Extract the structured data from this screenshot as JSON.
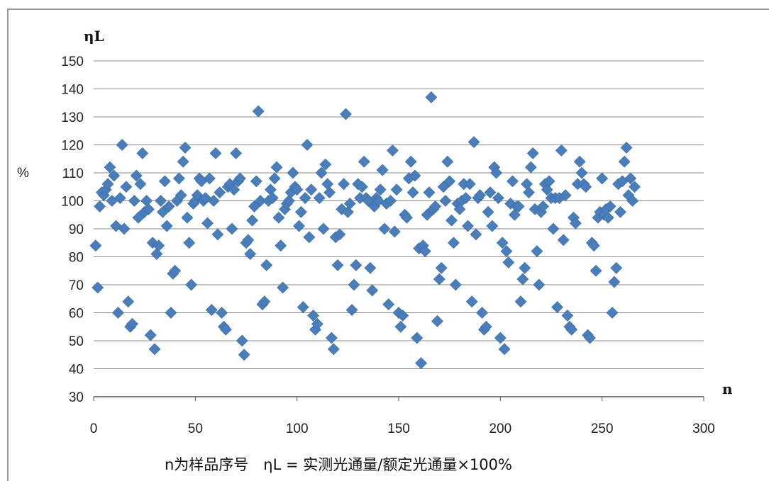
{
  "chart_data": {
    "type": "scatter",
    "title": "",
    "ylabel_symbol": "ηL",
    "ylabel_unit": "%",
    "xlabel": "n",
    "caption": "n为样品序号　ηL = 实测光通量/额定光通量×100%",
    "xlim": [
      0,
      300
    ],
    "ylim": [
      30,
      150
    ],
    "x_ticks": [
      0,
      50,
      100,
      150,
      200,
      250,
      300
    ],
    "y_ticks": [
      30,
      40,
      50,
      60,
      70,
      80,
      90,
      100,
      110,
      120,
      130,
      140,
      150
    ],
    "grid": "horizontal",
    "marker": "diamond",
    "marker_color": "#4a7ebb",
    "series": [
      {
        "values": [
          [
            1,
            84
          ],
          [
            2,
            69
          ],
          [
            3,
            98
          ],
          [
            4,
            103
          ],
          [
            5,
            102
          ],
          [
            6,
            104
          ],
          [
            7,
            106
          ],
          [
            8,
            112
          ],
          [
            9,
            100
          ],
          [
            10,
            109
          ],
          [
            11,
            91
          ],
          [
            12,
            60
          ],
          [
            13,
            101
          ],
          [
            14,
            120
          ],
          [
            15,
            90
          ],
          [
            16,
            105
          ],
          [
            17,
            64
          ],
          [
            18,
            55
          ],
          [
            19,
            56
          ],
          [
            20,
            100
          ],
          [
            21,
            109
          ],
          [
            22,
            94
          ],
          [
            23,
            106
          ],
          [
            24,
            117
          ],
          [
            25,
            96
          ],
          [
            26,
            100
          ],
          [
            27,
            97
          ],
          [
            28,
            52
          ],
          [
            29,
            85
          ],
          [
            30,
            47
          ],
          [
            31,
            81
          ],
          [
            32,
            84
          ],
          [
            33,
            100
          ],
          [
            34,
            96
          ],
          [
            35,
            107
          ],
          [
            36,
            91
          ],
          [
            37,
            98
          ],
          [
            38,
            60
          ],
          [
            39,
            74
          ],
          [
            40,
            75
          ],
          [
            41,
            100
          ],
          [
            42,
            108
          ],
          [
            43,
            102
          ],
          [
            44,
            114
          ],
          [
            45,
            119
          ],
          [
            46,
            94
          ],
          [
            47,
            85
          ],
          [
            48,
            70
          ],
          [
            49,
            99
          ],
          [
            50,
            100
          ],
          [
            51,
            102
          ],
          [
            52,
            108
          ],
          [
            53,
            107
          ],
          [
            54,
            100
          ],
          [
            55,
            101
          ],
          [
            56,
            92
          ],
          [
            57,
            108
          ],
          [
            58,
            61
          ],
          [
            59,
            100
          ],
          [
            60,
            117
          ],
          [
            61,
            88
          ],
          [
            62,
            103
          ],
          [
            63,
            60
          ],
          [
            64,
            55
          ],
          [
            65,
            54
          ],
          [
            66,
            105
          ],
          [
            67,
            106
          ],
          [
            68,
            90
          ],
          [
            69,
            104
          ],
          [
            70,
            117
          ],
          [
            71,
            107
          ],
          [
            72,
            108
          ],
          [
            73,
            50
          ],
          [
            74,
            45
          ],
          [
            75,
            85
          ],
          [
            76,
            86
          ],
          [
            77,
            81
          ],
          [
            78,
            93
          ],
          [
            79,
            98
          ],
          [
            80,
            107
          ],
          [
            81,
            132
          ],
          [
            82,
            100
          ],
          [
            83,
            63
          ],
          [
            84,
            64
          ],
          [
            85,
            77
          ],
          [
            86,
            100
          ],
          [
            87,
            104
          ],
          [
            88,
            101
          ],
          [
            89,
            108
          ],
          [
            90,
            112
          ],
          [
            91,
            94
          ],
          [
            92,
            84
          ],
          [
            93,
            69
          ],
          [
            94,
            97
          ],
          [
            95,
            99
          ],
          [
            96,
            100
          ],
          [
            97,
            103
          ],
          [
            98,
            110
          ],
          [
            99,
            105
          ],
          [
            100,
            104
          ],
          [
            101,
            91
          ],
          [
            102,
            96
          ],
          [
            103,
            62
          ],
          [
            104,
            101
          ],
          [
            105,
            120
          ],
          [
            106,
            87
          ],
          [
            107,
            104
          ],
          [
            108,
            59
          ],
          [
            109,
            54
          ],
          [
            110,
            56
          ],
          [
            111,
            101
          ],
          [
            112,
            110
          ],
          [
            113,
            90
          ],
          [
            114,
            113
          ],
          [
            115,
            106
          ],
          [
            116,
            103
          ],
          [
            117,
            51
          ],
          [
            118,
            47
          ],
          [
            119,
            87
          ],
          [
            120,
            77
          ],
          [
            121,
            88
          ],
          [
            122,
            97
          ],
          [
            123,
            106
          ],
          [
            124,
            131
          ],
          [
            125,
            96
          ],
          [
            126,
            99
          ],
          [
            127,
            61
          ],
          [
            128,
            70
          ],
          [
            129,
            77
          ],
          [
            130,
            106
          ],
          [
            131,
            101
          ],
          [
            132,
            105
          ],
          [
            133,
            114
          ],
          [
            134,
            101
          ],
          [
            135,
            100
          ],
          [
            136,
            76
          ],
          [
            137,
            68
          ],
          [
            138,
            98
          ],
          [
            139,
            101
          ],
          [
            140,
            100
          ],
          [
            141,
            104
          ],
          [
            142,
            111
          ],
          [
            143,
            90
          ],
          [
            144,
            99
          ],
          [
            145,
            63
          ],
          [
            146,
            100
          ],
          [
            147,
            118
          ],
          [
            148,
            89
          ],
          [
            149,
            104
          ],
          [
            150,
            60
          ],
          [
            151,
            55
          ],
          [
            152,
            59
          ],
          [
            153,
            95
          ],
          [
            154,
            94
          ],
          [
            155,
            108
          ],
          [
            156,
            114
          ],
          [
            157,
            103
          ],
          [
            158,
            109
          ],
          [
            159,
            51
          ],
          [
            160,
            83
          ],
          [
            161,
            42
          ],
          [
            162,
            84
          ],
          [
            163,
            82
          ],
          [
            164,
            95
          ],
          [
            165,
            103
          ],
          [
            166,
            137
          ],
          [
            167,
            97
          ],
          [
            168,
            98
          ],
          [
            169,
            57
          ],
          [
            170,
            72
          ],
          [
            171,
            76
          ],
          [
            172,
            105
          ],
          [
            173,
            100
          ],
          [
            174,
            114
          ],
          [
            175,
            107
          ],
          [
            176,
            93
          ],
          [
            177,
            85
          ],
          [
            178,
            70
          ],
          [
            179,
            99
          ],
          [
            180,
            97
          ],
          [
            181,
            100
          ],
          [
            182,
            106
          ],
          [
            183,
            101
          ],
          [
            184,
            91
          ],
          [
            185,
            106
          ],
          [
            186,
            64
          ],
          [
            187,
            121
          ],
          [
            188,
            88
          ],
          [
            189,
            101
          ],
          [
            190,
            102
          ],
          [
            191,
            60
          ],
          [
            192,
            54
          ],
          [
            193,
            55
          ],
          [
            194,
            96
          ],
          [
            195,
            103
          ],
          [
            196,
            91
          ],
          [
            197,
            112
          ],
          [
            198,
            110
          ],
          [
            199,
            101
          ],
          [
            200,
            51
          ],
          [
            201,
            85
          ],
          [
            202,
            47
          ],
          [
            203,
            82
          ],
          [
            204,
            78
          ],
          [
            205,
            99
          ],
          [
            206,
            107
          ],
          [
            207,
            95
          ],
          [
            208,
            98
          ],
          [
            209,
            98
          ],
          [
            210,
            64
          ],
          [
            211,
            72
          ],
          [
            212,
            76
          ],
          [
            213,
            106
          ],
          [
            214,
            103
          ],
          [
            215,
            112
          ],
          [
            216,
            117
          ],
          [
            217,
            97
          ],
          [
            218,
            82
          ],
          [
            219,
            70
          ],
          [
            220,
            96
          ],
          [
            221,
            98
          ],
          [
            222,
            106
          ],
          [
            223,
            104
          ],
          [
            224,
            107
          ],
          [
            225,
            101
          ],
          [
            226,
            90
          ],
          [
            227,
            101
          ],
          [
            228,
            62
          ],
          [
            229,
            101
          ],
          [
            230,
            118
          ],
          [
            231,
            86
          ],
          [
            232,
            102
          ],
          [
            233,
            59
          ],
          [
            234,
            55
          ],
          [
            235,
            54
          ],
          [
            236,
            94
          ],
          [
            237,
            92
          ],
          [
            238,
            106
          ],
          [
            239,
            114
          ],
          [
            240,
            110
          ],
          [
            241,
            106
          ],
          [
            242,
            105
          ],
          [
            243,
            52
          ],
          [
            244,
            51
          ],
          [
            245,
            85
          ],
          [
            246,
            84
          ],
          [
            247,
            75
          ],
          [
            248,
            94
          ],
          [
            249,
            96
          ],
          [
            250,
            108
          ],
          [
            251,
            95
          ],
          [
            252,
            97
          ],
          [
            253,
            94
          ],
          [
            254,
            98
          ],
          [
            255,
            60
          ],
          [
            256,
            71
          ],
          [
            257,
            76
          ],
          [
            258,
            106
          ],
          [
            259,
            96
          ],
          [
            260,
            107
          ],
          [
            261,
            114
          ],
          [
            262,
            119
          ],
          [
            263,
            102
          ],
          [
            264,
            108
          ],
          [
            265,
            100
          ],
          [
            266,
            105
          ]
        ]
      }
    ]
  }
}
